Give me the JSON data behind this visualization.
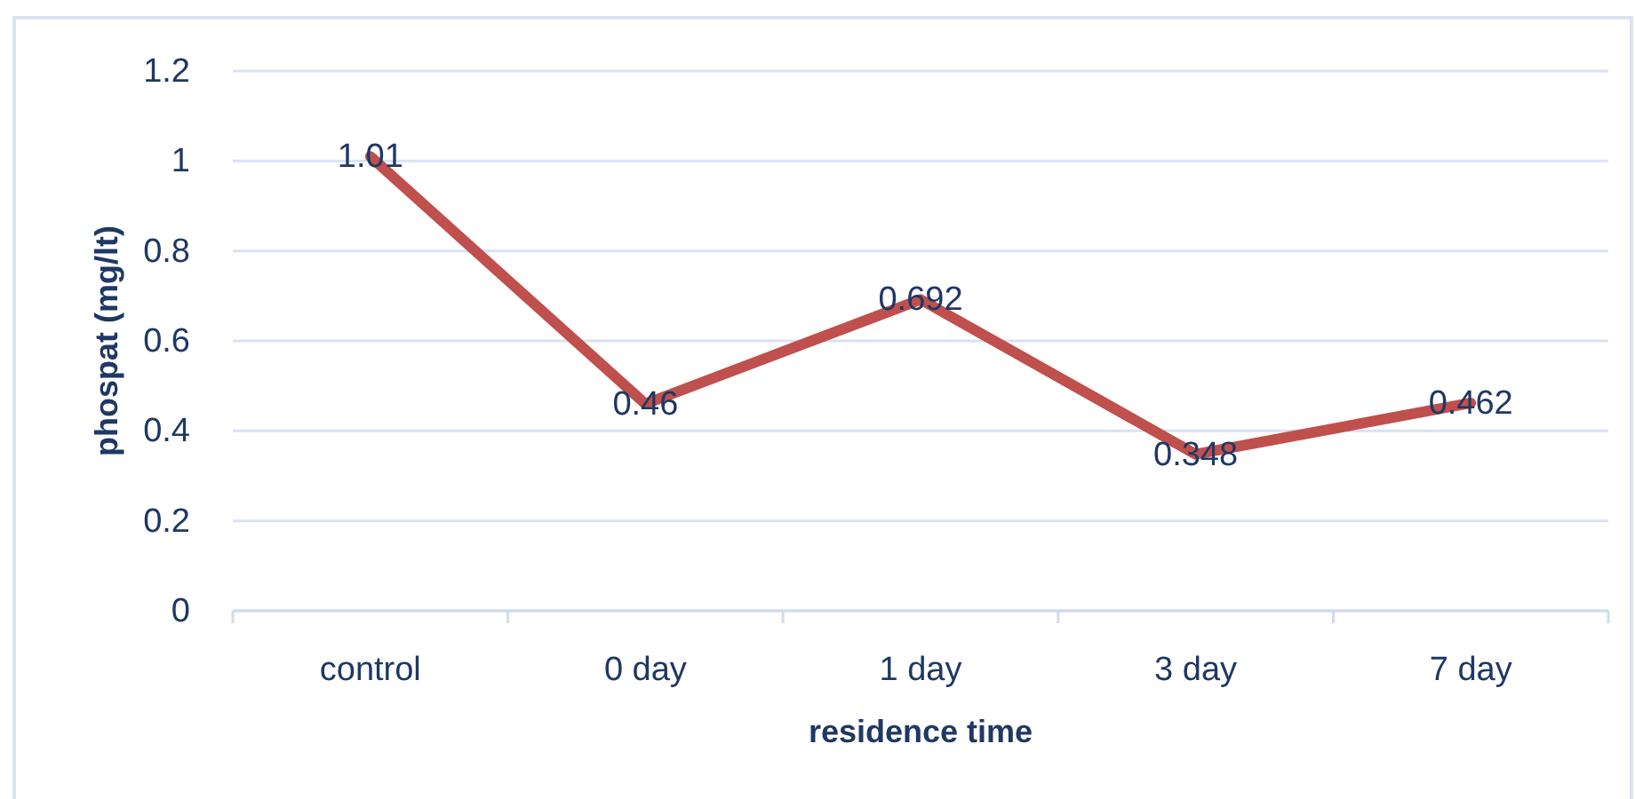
{
  "chart_data": {
    "type": "line",
    "xlabel": "residence time",
    "ylabel": "phospat (mg/lt)",
    "categories": [
      "control",
      "0 day",
      "1 day",
      "3 day",
      "7 day"
    ],
    "series": [
      {
        "color": "#c0504d",
        "values": [
          1.01,
          0.46,
          0.692,
          0.348,
          0.462
        ]
      }
    ],
    "ylim": [
      0,
      1.2
    ],
    "yticks": [
      0,
      0.2,
      0.4,
      0.6,
      0.8,
      1,
      1.2
    ],
    "grid": "y",
    "data_labels": true,
    "marker": "none",
    "line_style": "solid"
  }
}
